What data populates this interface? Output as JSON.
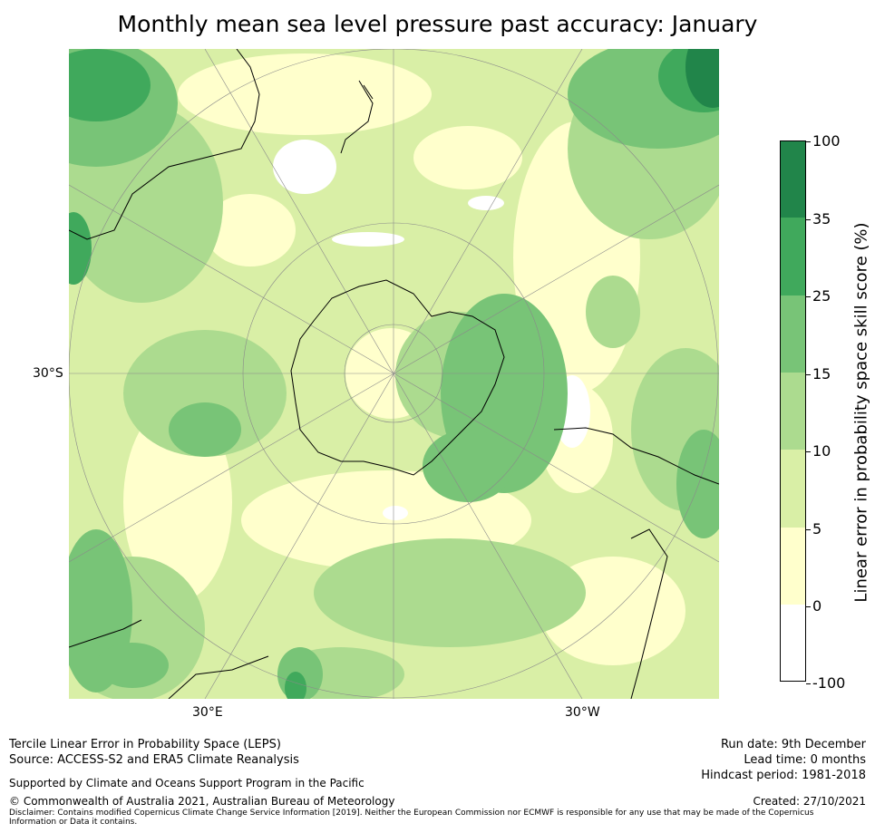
{
  "title": "Monthly mean sea level pressure past accuracy: January",
  "map": {
    "lat_labels": [
      "30°S"
    ],
    "lon_labels": [
      "30°E",
      "30°W"
    ]
  },
  "colorbar": {
    "label": "Linear error in probability space skill score (%)",
    "ticks": [
      "100",
      "35",
      "25",
      "15",
      "10",
      "5",
      "0",
      "-100"
    ],
    "colors": [
      "#21854a",
      "#40a95c",
      "#78c477",
      "#acdb8f",
      "#d9efa6",
      "#ffffcc",
      "#ffffff"
    ]
  },
  "footer": {
    "line1": "Tercile Linear Error in Probability Space (LEPS)",
    "line2": "Source: ACCESS-S2 and ERA5 Climate Reanalysis",
    "support": "Supported by Climate and Oceans Support Program in the Pacific",
    "copyright": "© Commonwealth of Australia 2021, Australian Bureau of Meteorology",
    "disclaimer": "Disclaimer: Contains modified Copernicus Climate Change Service Information [2019]. Neither the European Commission nor ECMWF is responsible for any use that may be made of the Copernicus Information or Data it contains.",
    "run_date": "Run date: 9th December",
    "lead_time": "Lead time: 0 months",
    "hindcast": "Hindcast period: 1981-2018",
    "created": "Created: 27/10/2021"
  }
}
